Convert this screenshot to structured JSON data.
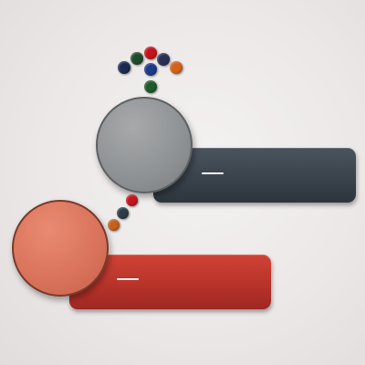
{
  "colors": {
    "background": "#ece8e8",
    "dark_bar": "#3a434b",
    "red_bar": "#b8332a",
    "gray_circle": "#8e9193",
    "orange_circle": "#d9725a"
  },
  "cluster_top": {
    "dot_colors": [
      "#1a2b52",
      "#1f4a2a",
      "#c4141c",
      "#2a2f55",
      "#d5621c",
      "#1a3a8a",
      "#1e5a2a"
    ]
  },
  "cluster_bottom": {
    "dot_colors": [
      "#c4141c",
      "#2c3b48",
      "#c4611c"
    ]
  }
}
